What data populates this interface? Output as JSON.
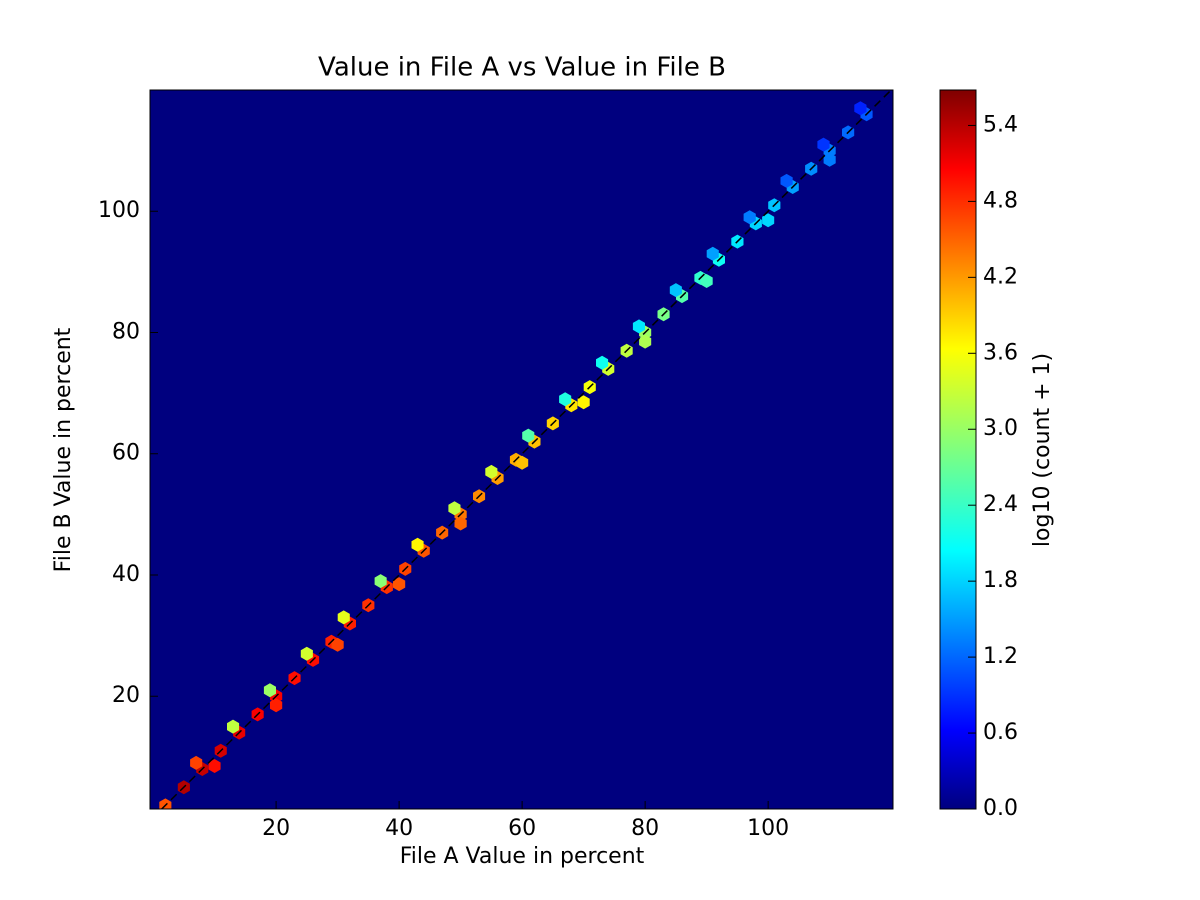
{
  "chart_data": {
    "type": "hexbin",
    "title": "Value in File A vs Value in File B",
    "x_label": "File A Value in percent",
    "y_label": "File B Value in percent",
    "colorbar_label": "log10 (count + 1)",
    "colormap": "jet",
    "background_color": "#00007f",
    "x": [
      2,
      5,
      8,
      11,
      14,
      17,
      20,
      23,
      26,
      29,
      32,
      35,
      38,
      41,
      44,
      47,
      50,
      53,
      56,
      59,
      62,
      65,
      68,
      71,
      74,
      77,
      80,
      83,
      86,
      89,
      92,
      95,
      98,
      101,
      104,
      107,
      110,
      113,
      116,
      7,
      13,
      19,
      25,
      31,
      37,
      43,
      49,
      55,
      61,
      67,
      73,
      79,
      85,
      91,
      97,
      103,
      109,
      115,
      10,
      20,
      30,
      40,
      50,
      60,
      70,
      80,
      90,
      100,
      110
    ],
    "y": [
      2,
      5,
      8,
      11,
      14,
      17,
      20,
      23,
      26,
      29,
      32,
      35,
      38,
      41,
      44,
      47,
      50,
      53,
      56,
      59,
      62,
      65,
      68,
      71,
      74,
      77,
      80,
      83,
      86,
      89,
      92,
      95,
      98,
      101,
      104,
      107,
      110,
      113,
      116,
      9,
      15,
      21,
      27,
      33,
      39,
      45,
      51,
      57,
      63,
      69,
      75,
      81,
      87,
      93,
      99,
      105,
      111,
      117,
      8.5,
      18.5,
      28.5,
      38.5,
      48.5,
      58.5,
      68.5,
      78.5,
      88.5,
      98.5,
      108.5
    ],
    "values": [
      4.5,
      5.4,
      5.3,
      5.2,
      5.1,
      5.0,
      5.0,
      4.9,
      4.9,
      4.8,
      4.8,
      4.7,
      4.7,
      4.6,
      4.5,
      4.4,
      4.3,
      4.2,
      4.1,
      4.0,
      3.9,
      3.8,
      3.7,
      3.5,
      3.3,
      3.2,
      3.0,
      2.8,
      2.6,
      2.4,
      2.2,
      2.0,
      1.9,
      1.8,
      1.6,
      1.5,
      1.4,
      1.3,
      1.2,
      4.6,
      3.2,
      3.0,
      3.3,
      3.4,
      2.9,
      3.6,
      3.2,
      3.3,
      2.6,
      2.3,
      2.2,
      2.0,
      1.8,
      1.6,
      1.4,
      1.2,
      1.0,
      0.9,
      4.9,
      4.8,
      4.6,
      4.5,
      4.4,
      3.9,
      3.6,
      3.1,
      2.5,
      1.9,
      1.4
    ],
    "xlim": [
      -0.5,
      120.3
    ],
    "ylim": [
      1.4,
      120
    ],
    "xticks": [
      20,
      40,
      60,
      80,
      100
    ],
    "yticks": [
      20,
      40,
      60,
      80,
      100
    ],
    "clim": [
      0,
      5.68
    ],
    "cticks": [
      {
        "value": 0,
        "label": "0.0"
      },
      {
        "value": 0.6,
        "label": "0.6"
      },
      {
        "value": 1.2,
        "label": "1.2"
      },
      {
        "value": 1.8,
        "label": "1.8"
      },
      {
        "value": 2.4,
        "label": "2.4"
      },
      {
        "value": 3.0,
        "label": "3.0"
      },
      {
        "value": 3.6,
        "label": "3.6"
      },
      {
        "value": 4.2,
        "label": "4.2"
      },
      {
        "value": 4.8,
        "label": "4.8"
      },
      {
        "value": 5.4,
        "label": "5.4"
      }
    ]
  }
}
